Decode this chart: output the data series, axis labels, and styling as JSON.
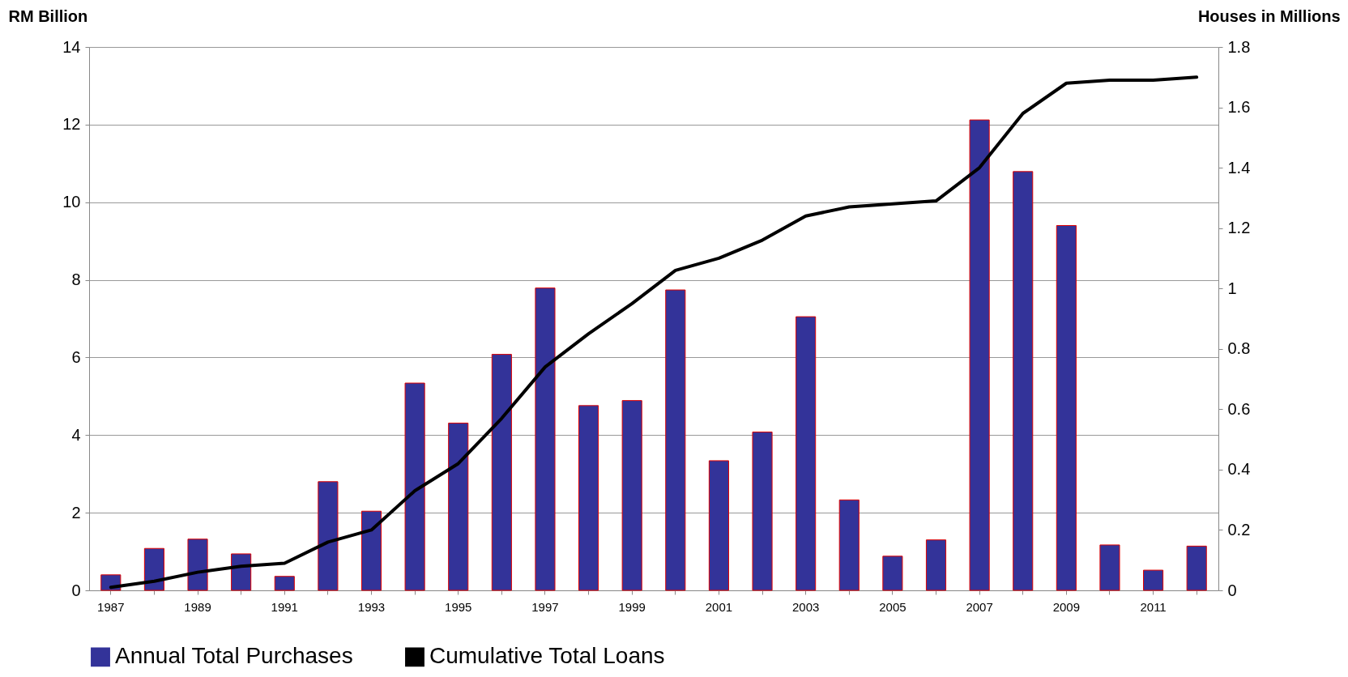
{
  "chart_data": {
    "type": "bar",
    "ylabel": "RM Billion",
    "y2label": "Houses in Millions",
    "categories": [
      "1987",
      null,
      "1989",
      null,
      "1991",
      null,
      "1993",
      null,
      "1995",
      null,
      "1997",
      null,
      "1999",
      null,
      "2001",
      null,
      "2003",
      null,
      "2005",
      null,
      "2007",
      null,
      "2009",
      null,
      "2011",
      null
    ],
    "series": [
      {
        "name": "Annual Total Purchases",
        "color": "#333399",
        "values": [
          0.4,
          1.08,
          1.32,
          0.94,
          0.36,
          2.8,
          2.04,
          5.34,
          4.31,
          6.08,
          7.79,
          4.76,
          4.89,
          7.74,
          3.34,
          4.08,
          7.05,
          2.33,
          0.88,
          1.3,
          12.12,
          10.79,
          9.4,
          1.17,
          0.52,
          1.14
        ]
      },
      {
        "name": "Cumulative Total Loans",
        "type": "line",
        "axis": "y2",
        "color": "#000000",
        "values": [
          0.01,
          0.03,
          0.06,
          0.08,
          0.09,
          0.16,
          0.2,
          0.33,
          0.42,
          0.57,
          0.74,
          0.85,
          0.95,
          1.06,
          1.1,
          1.16,
          1.24,
          1.27,
          1.28,
          1.29,
          1.4,
          1.58,
          1.68,
          1.69,
          1.69,
          1.7
        ]
      }
    ],
    "ylim": [
      0,
      14
    ],
    "yticks": [
      0,
      2,
      4,
      6,
      8,
      10,
      12,
      14
    ],
    "y2lim": [
      0,
      1.8
    ],
    "y2ticks": [
      0,
      0.2,
      0.4,
      0.6,
      0.8,
      1,
      1.2,
      1.4,
      1.6,
      1.8
    ],
    "grid": "y",
    "legend": "bottom"
  }
}
